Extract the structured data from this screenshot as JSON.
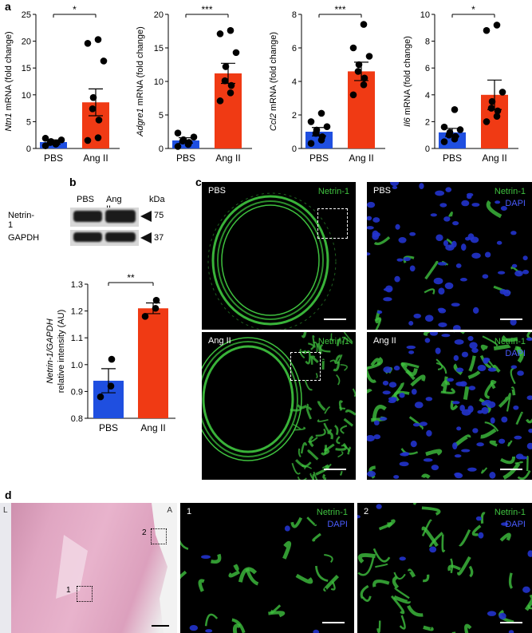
{
  "panel_labels": {
    "a": "a",
    "b": "b",
    "c": "c",
    "d": "d"
  },
  "chart_data": [
    {
      "type": "bar",
      "categories": [
        "PBS",
        "Ang II"
      ],
      "values": [
        1.2,
        8.6
      ],
      "errors": [
        0.4,
        2.5
      ],
      "ylabel_gene": "Ntn1",
      "ylabel_rest": " mRNA (fold change)",
      "ylim": [
        0,
        25
      ],
      "yticks": [
        0,
        5,
        10,
        15,
        20,
        25
      ],
      "points": [
        [
          0.5,
          0.8,
          1.0,
          1.1,
          1.3,
          1.6,
          1.9
        ],
        [
          1.5,
          2.0,
          5.3,
          7.4,
          9.5,
          16.3,
          19.6,
          20.3
        ]
      ],
      "significance": "*"
    },
    {
      "type": "bar",
      "categories": [
        "PBS",
        "Ang II"
      ],
      "values": [
        1.2,
        11.2
      ],
      "errors": [
        0.4,
        1.5
      ],
      "ylabel_gene": "Adgre1",
      "ylabel_rest": " mRNA (fold change)",
      "ylim": [
        0,
        20
      ],
      "yticks": [
        0,
        5,
        10,
        15,
        20
      ],
      "points": [
        [
          0.3,
          0.6,
          0.9,
          1.1,
          1.3,
          1.7,
          2.3
        ],
        [
          7.1,
          8.3,
          9.4,
          10.1,
          12.2,
          14.3,
          17.1,
          17.6
        ]
      ],
      "significance": "***"
    },
    {
      "type": "bar",
      "categories": [
        "PBS",
        "Ang II"
      ],
      "values": [
        1.0,
        4.6
      ],
      "errors": [
        0.25,
        0.55
      ],
      "ylabel_gene": "Ccl2",
      "ylabel_rest": " mRNA (fold change)",
      "ylim": [
        0,
        8
      ],
      "yticks": [
        0,
        2,
        4,
        6,
        8
      ],
      "points": [
        [
          0.3,
          0.5,
          0.7,
          0.9,
          1.1,
          1.3,
          1.6,
          2.1
        ],
        [
          3.2,
          3.8,
          4.2,
          4.6,
          5.0,
          5.5,
          6.0,
          7.4
        ]
      ],
      "significance": "***"
    },
    {
      "type": "bar",
      "categories": [
        "PBS",
        "Ang II"
      ],
      "values": [
        1.2,
        4.0
      ],
      "errors": [
        0.3,
        1.1
      ],
      "ylabel_gene": "Il6",
      "ylabel_rest": " mRNA (fold change)",
      "ylim": [
        0,
        10
      ],
      "yticks": [
        0,
        2,
        4,
        6,
        8,
        10
      ],
      "points": [
        [
          0.5,
          0.7,
          0.9,
          1.0,
          1.2,
          1.4,
          1.6,
          2.9
        ],
        [
          2.0,
          2.4,
          2.8,
          3.0,
          3.5,
          4.2,
          8.8,
          9.2
        ]
      ],
      "significance": "*"
    },
    {
      "type": "bar",
      "categories": [
        "PBS",
        "Ang II"
      ],
      "values": [
        0.94,
        1.21
      ],
      "errors": [
        0.045,
        0.02
      ],
      "ylabel_gene": "Netrin-1/GAPDH",
      "ylabel_rest": "relative intensity (AU)",
      "ylim": [
        0.8,
        1.3
      ],
      "yticks": [
        0.8,
        0.9,
        1.0,
        1.1,
        1.2,
        1.3
      ],
      "ytick_labels": [
        "0.8",
        "0.9",
        "1.0",
        "1.1",
        "1.2",
        "1.3"
      ],
      "points": [
        [
          0.88,
          0.92,
          1.02
        ],
        [
          1.18,
          1.21,
          1.24
        ]
      ],
      "significance": "**"
    }
  ],
  "colors": {
    "pbs": "#1f4fe0",
    "ang": "#f03a14",
    "green": "#3fc13f",
    "blue": "#4a5cff"
  },
  "blot": {
    "lanes": [
      "PBS",
      "Ang II"
    ],
    "unit": "kDa",
    "rows": [
      {
        "name": "Netrin-1",
        "kda": "75"
      },
      {
        "name": "GAPDH",
        "kda": "37"
      }
    ]
  },
  "panel_c": {
    "tiles": [
      {
        "cond": "PBS",
        "markers": [
          "Netrin-1"
        ]
      },
      {
        "cond": "PBS",
        "markers": [
          "Netrin-1",
          "DAPI"
        ]
      },
      {
        "cond": "Ang II",
        "markers": [
          "Netrin-1"
        ]
      },
      {
        "cond": "Ang II",
        "markers": [
          "Netrin-1",
          "DAPI"
        ]
      }
    ]
  },
  "panel_d": {
    "hne": {
      "left": "L",
      "right": "A",
      "box1": "1",
      "box2": "2"
    },
    "tiles": [
      {
        "num": "1",
        "markers": [
          "Netrin-1",
          "DAPI"
        ]
      },
      {
        "num": "2",
        "markers": [
          "Netrin-1",
          "DAPI"
        ]
      }
    ]
  }
}
